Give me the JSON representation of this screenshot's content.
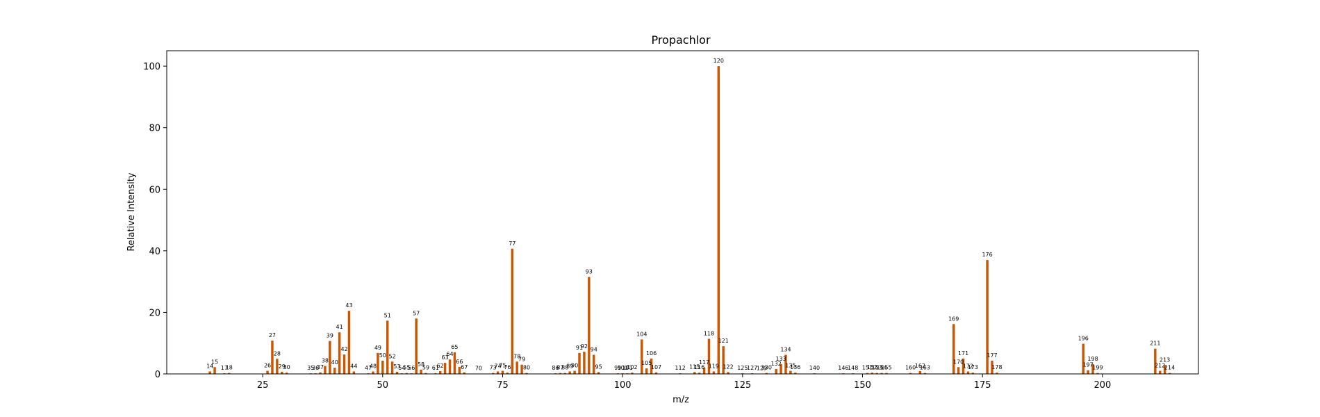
{
  "chart_data": {
    "type": "bar",
    "title": "Propachlor",
    "xlabel": "m/z",
    "ylabel": "Relative Intensity",
    "xlim": [
      5,
      220
    ],
    "ylim": [
      0,
      105
    ],
    "xticks": [
      25,
      50,
      75,
      100,
      125,
      150,
      175,
      200
    ],
    "yticks": [
      0,
      20,
      40,
      60,
      80,
      100
    ],
    "grid": false,
    "bar_color": "#cc5500",
    "peaks": [
      {
        "mz": 14,
        "intensity": 0.8
      },
      {
        "mz": 15,
        "intensity": 2.2
      },
      {
        "mz": 17,
        "intensity": 0.2
      },
      {
        "mz": 18,
        "intensity": 0.3
      },
      {
        "mz": 26,
        "intensity": 1.0
      },
      {
        "mz": 27,
        "intensity": 10.8
      },
      {
        "mz": 28,
        "intensity": 4.9
      },
      {
        "mz": 29,
        "intensity": 0.7
      },
      {
        "mz": 30,
        "intensity": 0.4
      },
      {
        "mz": 35,
        "intensity": 0.2
      },
      {
        "mz": 36,
        "intensity": 0.2
      },
      {
        "mz": 37,
        "intensity": 0.5
      },
      {
        "mz": 38,
        "intensity": 2.6
      },
      {
        "mz": 39,
        "intensity": 10.7
      },
      {
        "mz": 40,
        "intensity": 2.0
      },
      {
        "mz": 41,
        "intensity": 13.5
      },
      {
        "mz": 42,
        "intensity": 6.3
      },
      {
        "mz": 43,
        "intensity": 20.5
      },
      {
        "mz": 44,
        "intensity": 0.8
      },
      {
        "mz": 47,
        "intensity": 0.2
      },
      {
        "mz": 48,
        "intensity": 0.8
      },
      {
        "mz": 49,
        "intensity": 6.8
      },
      {
        "mz": 50,
        "intensity": 4.3
      },
      {
        "mz": 51,
        "intensity": 17.3
      },
      {
        "mz": 52,
        "intensity": 4.0
      },
      {
        "mz": 53,
        "intensity": 0.7
      },
      {
        "mz": 54,
        "intensity": 0.2
      },
      {
        "mz": 55,
        "intensity": 0.3
      },
      {
        "mz": 56,
        "intensity": 0.2
      },
      {
        "mz": 57,
        "intensity": 18.0
      },
      {
        "mz": 58,
        "intensity": 1.4
      },
      {
        "mz": 59,
        "intensity": 0.3
      },
      {
        "mz": 61,
        "intensity": 0.2
      },
      {
        "mz": 62,
        "intensity": 0.9
      },
      {
        "mz": 63,
        "intensity": 3.6
      },
      {
        "mz": 64,
        "intensity": 4.7
      },
      {
        "mz": 65,
        "intensity": 7.0
      },
      {
        "mz": 66,
        "intensity": 2.3
      },
      {
        "mz": 67,
        "intensity": 0.5
      },
      {
        "mz": 70,
        "intensity": 0.1
      },
      {
        "mz": 73,
        "intensity": 0.3
      },
      {
        "mz": 74,
        "intensity": 0.8
      },
      {
        "mz": 75,
        "intensity": 1.0
      },
      {
        "mz": 76,
        "intensity": 0.4
      },
      {
        "mz": 77,
        "intensity": 40.7
      },
      {
        "mz": 78,
        "intensity": 4.0
      },
      {
        "mz": 79,
        "intensity": 3.0
      },
      {
        "mz": 80,
        "intensity": 0.3
      },
      {
        "mz": 86,
        "intensity": 0.2
      },
      {
        "mz": 87,
        "intensity": 0.3
      },
      {
        "mz": 88,
        "intensity": 0.3
      },
      {
        "mz": 89,
        "intensity": 0.8
      },
      {
        "mz": 90,
        "intensity": 1.0
      },
      {
        "mz": 91,
        "intensity": 6.8
      },
      {
        "mz": 92,
        "intensity": 7.2
      },
      {
        "mz": 93,
        "intensity": 31.5
      },
      {
        "mz": 94,
        "intensity": 6.2
      },
      {
        "mz": 95,
        "intensity": 0.6
      },
      {
        "mz": 99,
        "intensity": 0.2
      },
      {
        "mz": 100,
        "intensity": 0.2
      },
      {
        "mz": 101,
        "intensity": 0.2
      },
      {
        "mz": 102,
        "intensity": 0.4
      },
      {
        "mz": 104,
        "intensity": 11.2
      },
      {
        "mz": 105,
        "intensity": 1.8
      },
      {
        "mz": 106,
        "intensity": 5.0
      },
      {
        "mz": 107,
        "intensity": 0.5
      },
      {
        "mz": 112,
        "intensity": 0.2
      },
      {
        "mz": 115,
        "intensity": 0.6
      },
      {
        "mz": 116,
        "intensity": 0.4
      },
      {
        "mz": 117,
        "intensity": 2.0
      },
      {
        "mz": 118,
        "intensity": 11.4
      },
      {
        "mz": 119,
        "intensity": 0.8
      },
      {
        "mz": 120,
        "intensity": 100
      },
      {
        "mz": 121,
        "intensity": 9.0
      },
      {
        "mz": 122,
        "intensity": 0.6
      },
      {
        "mz": 125,
        "intensity": 0.2
      },
      {
        "mz": 127,
        "intensity": 0.2
      },
      {
        "mz": 129,
        "intensity": 0.1
      },
      {
        "mz": 130,
        "intensity": 0.3
      },
      {
        "mz": 132,
        "intensity": 1.6
      },
      {
        "mz": 133,
        "intensity": 3.2
      },
      {
        "mz": 134,
        "intensity": 6.2
      },
      {
        "mz": 135,
        "intensity": 1.0
      },
      {
        "mz": 136,
        "intensity": 0.4
      },
      {
        "mz": 140,
        "intensity": 0.2
      },
      {
        "mz": 146,
        "intensity": 0.2
      },
      {
        "mz": 148,
        "intensity": 0.2
      },
      {
        "mz": 151,
        "intensity": 0.3
      },
      {
        "mz": 152,
        "intensity": 0.4
      },
      {
        "mz": 153,
        "intensity": 0.3
      },
      {
        "mz": 154,
        "intensity": 0.3
      },
      {
        "mz": 155,
        "intensity": 0.3
      },
      {
        "mz": 160,
        "intensity": 0.3
      },
      {
        "mz": 162,
        "intensity": 0.9
      },
      {
        "mz": 163,
        "intensity": 0.3
      },
      {
        "mz": 169,
        "intensity": 16.2
      },
      {
        "mz": 170,
        "intensity": 2.2
      },
      {
        "mz": 171,
        "intensity": 5.0
      },
      {
        "mz": 172,
        "intensity": 0.8
      },
      {
        "mz": 173,
        "intensity": 0.4
      },
      {
        "mz": 176,
        "intensity": 37.0
      },
      {
        "mz": 177,
        "intensity": 4.3
      },
      {
        "mz": 178,
        "intensity": 0.4
      },
      {
        "mz": 196,
        "intensity": 9.8
      },
      {
        "mz": 197,
        "intensity": 1.2
      },
      {
        "mz": 198,
        "intensity": 3.2
      },
      {
        "mz": 199,
        "intensity": 0.3
      },
      {
        "mz": 211,
        "intensity": 8.2
      },
      {
        "mz": 212,
        "intensity": 1.0
      },
      {
        "mz": 213,
        "intensity": 2.8
      },
      {
        "mz": 214,
        "intensity": 0.3
      }
    ]
  }
}
